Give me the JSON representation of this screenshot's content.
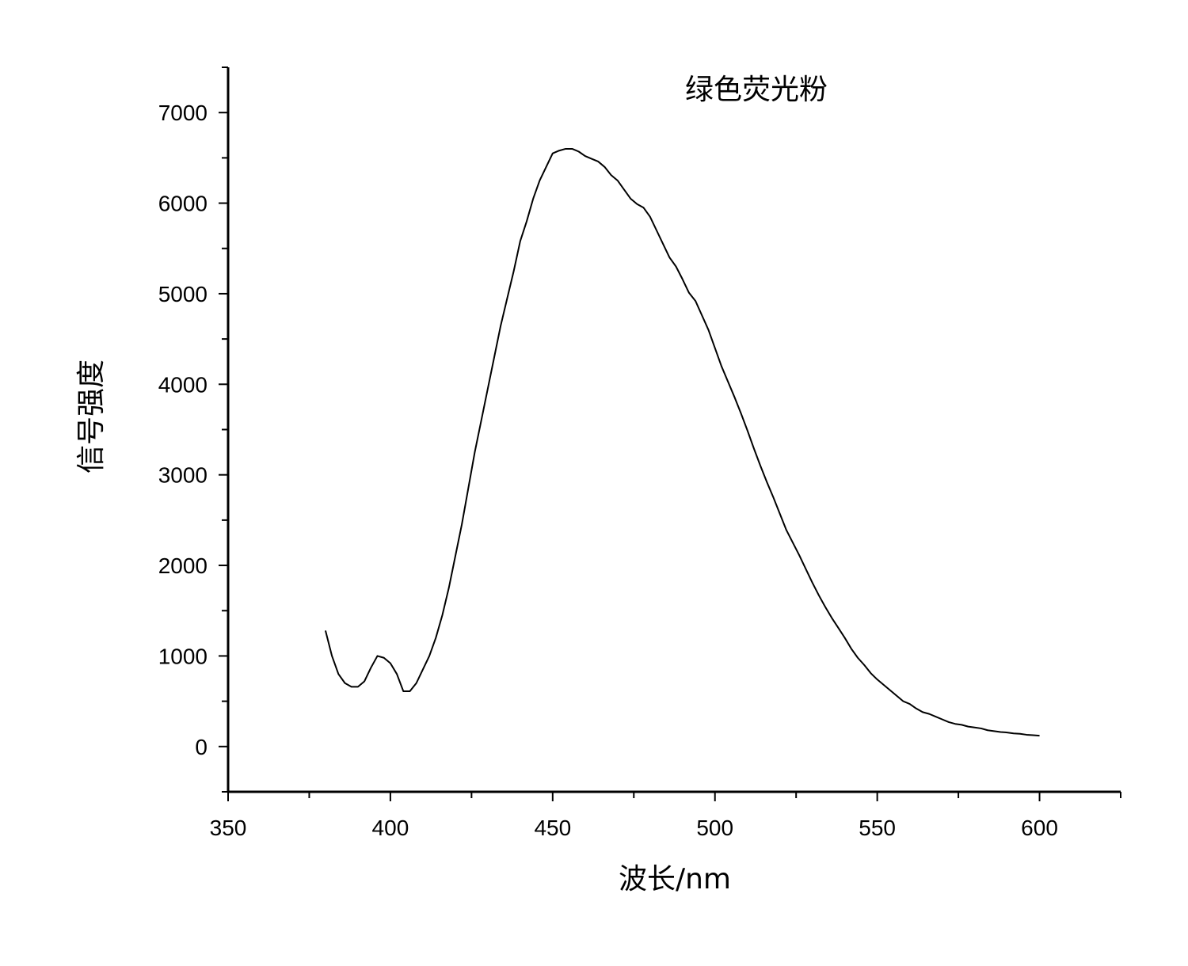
{
  "chart_data": {
    "type": "line",
    "title": "绿色荧光粉",
    "xlabel": "波长/nm",
    "ylabel": "信号强度",
    "xlim": [
      350,
      625
    ],
    "ylim": [
      -500,
      7500
    ],
    "x_ticks": [
      350,
      400,
      450,
      500,
      550,
      600
    ],
    "y_ticks": [
      0,
      1000,
      2000,
      3000,
      4000,
      5000,
      6000,
      7000
    ],
    "grid": false,
    "line_color": "#000000",
    "series": [
      {
        "x": [
          380,
          382,
          384,
          386,
          388,
          390,
          392,
          394,
          396,
          398,
          400,
          402,
          404,
          406,
          408,
          410,
          412,
          414,
          416,
          418,
          420,
          422,
          424,
          426,
          428,
          430,
          432,
          434,
          436,
          438,
          440,
          442,
          444,
          446,
          448,
          450,
          452,
          454,
          456,
          458,
          460,
          462,
          464,
          466,
          468,
          470,
          472,
          474,
          476,
          478,
          480,
          482,
          484,
          486,
          488,
          490,
          492,
          494,
          496,
          498,
          500,
          502,
          504,
          506,
          508,
          510,
          512,
          514,
          516,
          518,
          520,
          522,
          524,
          526,
          528,
          530,
          532,
          534,
          536,
          538,
          540,
          542,
          544,
          546,
          548,
          550,
          552,
          554,
          556,
          558,
          560,
          562,
          564,
          566,
          568,
          570,
          572,
          574,
          576,
          578,
          580,
          582,
          584,
          586,
          588,
          590,
          592,
          594,
          596,
          598,
          600
        ],
        "y": [
          1280,
          1000,
          800,
          700,
          660,
          660,
          720,
          870,
          1000,
          980,
          920,
          800,
          610,
          610,
          700,
          850,
          1000,
          1200,
          1450,
          1750,
          2100,
          2450,
          2850,
          3250,
          3600,
          3950,
          4300,
          4650,
          4950,
          5250,
          5580,
          5800,
          6050,
          6250,
          6400,
          6550,
          6580,
          6600,
          6600,
          6570,
          6520,
          6490,
          6460,
          6400,
          6310,
          6250,
          6150,
          6050,
          5990,
          5950,
          5850,
          5700,
          5550,
          5400,
          5300,
          5160,
          5010,
          4920,
          4760,
          4600,
          4400,
          4200,
          4030,
          3860,
          3680,
          3490,
          3290,
          3100,
          2920,
          2750,
          2570,
          2390,
          2250,
          2110,
          1960,
          1810,
          1670,
          1540,
          1420,
          1310,
          1200,
          1080,
          980,
          900,
          810,
          740,
          680,
          620,
          560,
          500,
          470,
          420,
          380,
          360,
          330,
          300,
          270,
          250,
          240,
          220,
          210,
          200,
          180,
          170,
          160,
          155,
          145,
          140,
          130,
          125,
          120
        ]
      }
    ]
  }
}
